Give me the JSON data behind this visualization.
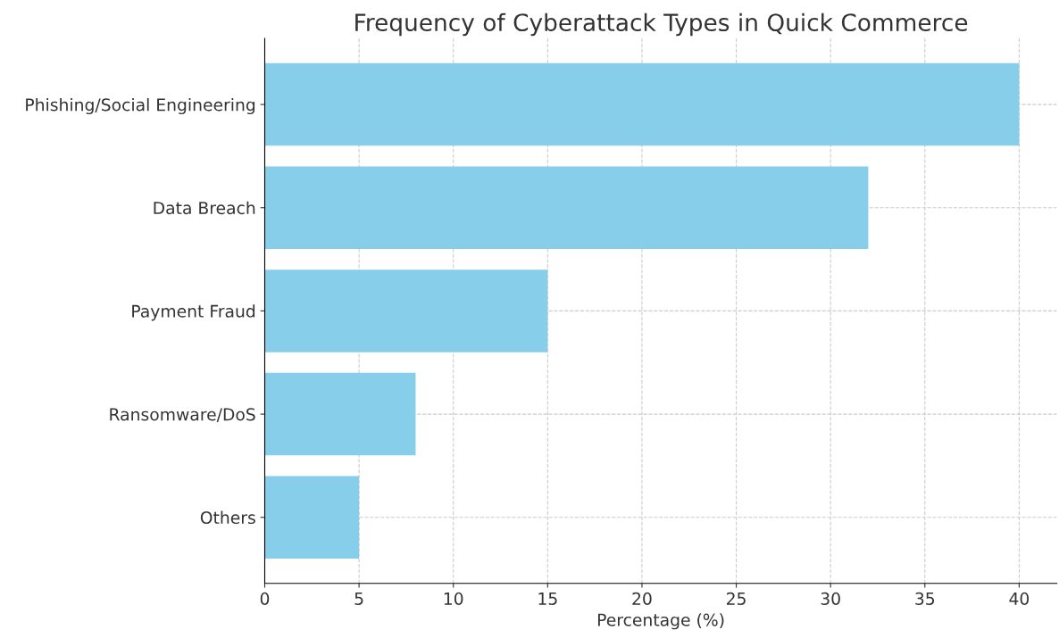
{
  "chart_data": {
    "type": "bar",
    "orientation": "horizontal",
    "title": "Frequency of Cyberattack Types in Quick Commerce",
    "xlabel": "Percentage (%)",
    "categories": [
      "Phishing/Social Engineering",
      "Data Breach",
      "Payment Fraud",
      "Ransomware/DoS",
      "Others"
    ],
    "values": [
      40,
      32,
      15,
      8,
      5
    ],
    "color": "#87ceeb",
    "xlim": [
      0,
      42
    ],
    "xticks": [
      0,
      5,
      10,
      15,
      20,
      25,
      30,
      35,
      40
    ],
    "grid": true,
    "line_style": "dashed"
  }
}
